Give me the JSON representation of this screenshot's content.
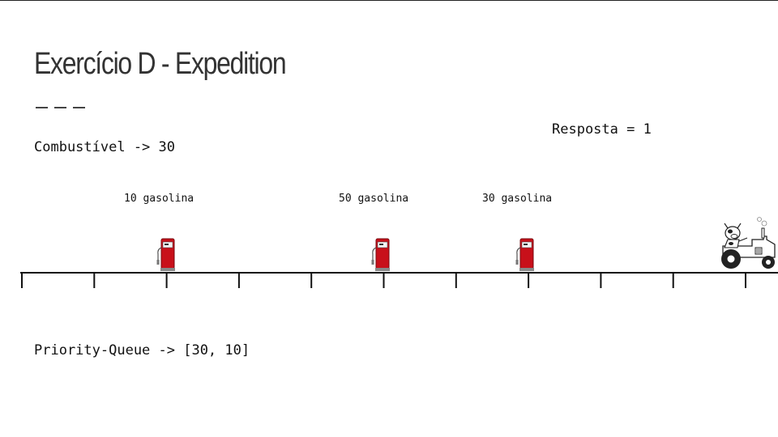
{
  "slide": {
    "title": "Exercício D - Expedition",
    "fuel_text": "Combustível -> 30",
    "answer_text": "Resposta = 1",
    "priority_queue_text": "Priority-Queue -> [30, 10]"
  },
  "stations": [
    {
      "label": "10 gasolina",
      "icon": "gas-pump-icon"
    },
    {
      "label": "50 gasolina",
      "icon": "gas-pump-icon"
    },
    {
      "label": "30 gasolina",
      "icon": "gas-pump-icon"
    }
  ],
  "track": {
    "tick_count": 11,
    "vehicle_icon": "tractor-icon"
  },
  "colors": {
    "pump_red": "#c8101a",
    "text": "#111111",
    "title": "#333333"
  }
}
